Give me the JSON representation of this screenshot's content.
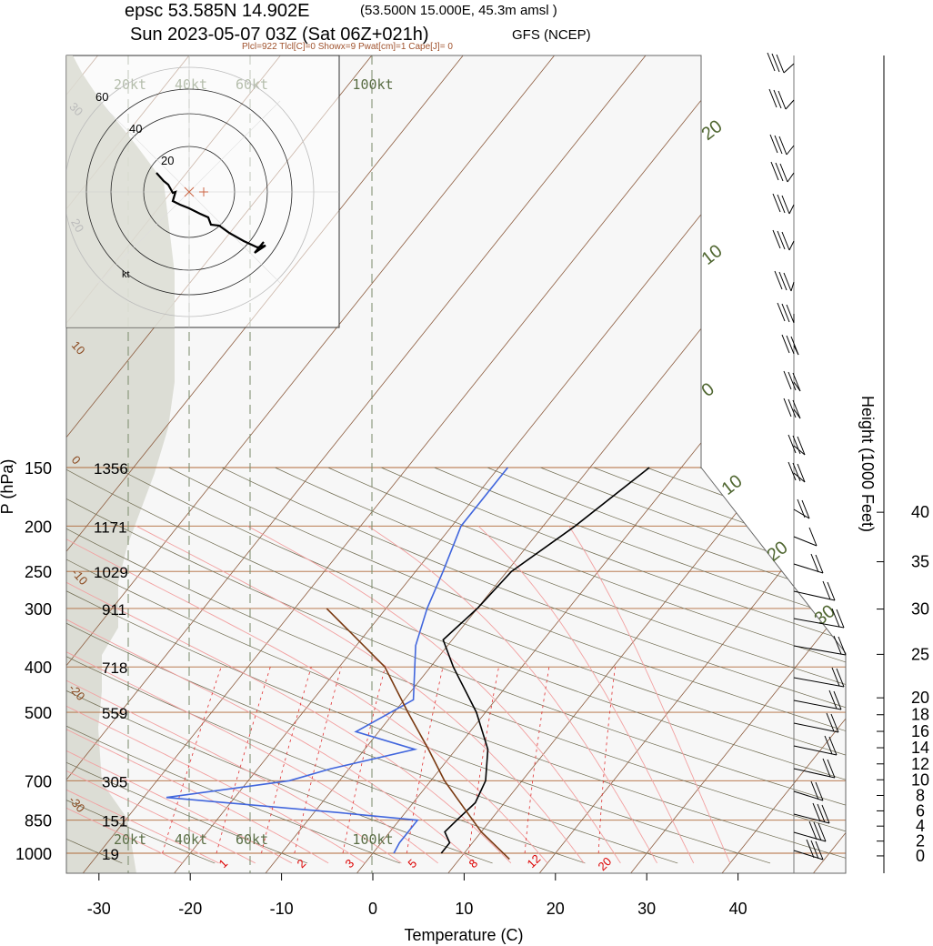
{
  "header": {
    "title": "epsc 53.585N 14.902E",
    "location": "(53.500N 15.000E,  45.3m amsl )",
    "time": "Sun 2023-05-07 03Z (Sat 06Z+021h)",
    "model": "GFS (NCEP)",
    "indices": "Plcl=922 Tlcl[C]=0 Showx=9 Pwat[cm]=1 Cape[J]= 0"
  },
  "chart_data": {
    "type": "line",
    "subtype": "skew-T log-p sounding",
    "xlabel": "Temperature (C)",
    "ylabel": "P (hPa)",
    "y2label": "Height (1000 Feet)",
    "xlim": [
      -34,
      46
    ],
    "ylim": [
      1030,
      150
    ],
    "x_ticks": [
      "-30",
      "-20",
      "-10",
      "0",
      "10",
      "20",
      "30",
      "40"
    ],
    "pressure_levels": [
      {
        "p": 150,
        "label": "150",
        "height_m": "1356"
      },
      {
        "p": 200,
        "label": "200",
        "height_m": "1171"
      },
      {
        "p": 250,
        "label": "250",
        "height_m": "1029"
      },
      {
        "p": 300,
        "label": "300",
        "height_m": "911"
      },
      {
        "p": 400,
        "label": "400",
        "height_m": "718"
      },
      {
        "p": 500,
        "label": "500",
        "height_m": "559"
      },
      {
        "p": 700,
        "label": "700",
        "height_m": "305"
      },
      {
        "p": 850,
        "label": "850",
        "height_m": "151"
      },
      {
        "p": 1000,
        "label": "1000",
        "height_m": "19"
      }
    ],
    "height_ft_ticks": [
      "0",
      "2",
      "4",
      "6",
      "8",
      "10",
      "12",
      "14",
      "16",
      "18",
      "20",
      "25",
      "30",
      "35",
      "40"
    ],
    "isotherm_labels": [
      "10",
      "0",
      "-10",
      "-20",
      "-30"
    ],
    "dry_adiabat_labels": [
      "20",
      "10",
      "0",
      "10",
      "20",
      "30"
    ],
    "mixing_ratio_labels": [
      "1",
      "2",
      "3",
      "5",
      "8",
      "12",
      "20"
    ],
    "series": [
      {
        "name": "temperature",
        "color": "#000000",
        "points": [
          [
            1000,
            7.5
          ],
          [
            950,
            7.5
          ],
          [
            900,
            6.0
          ],
          [
            850,
            6.3
          ],
          [
            780,
            6.8
          ],
          [
            700,
            6.0
          ],
          [
            600,
            3.5
          ],
          [
            500,
            -1.0
          ],
          [
            400,
            -7.5
          ],
          [
            350,
            -11.0
          ],
          [
            300,
            -10.0
          ],
          [
            250,
            -9.5
          ],
          [
            200,
            -6.5
          ],
          [
            150,
            -3.5
          ]
        ]
      },
      {
        "name": "dewpoint",
        "color": "#4166dd",
        "points": [
          [
            1000,
            2.3
          ],
          [
            950,
            2.0
          ],
          [
            900,
            2.0
          ],
          [
            850,
            2.0
          ],
          [
            820,
            -7.0
          ],
          [
            760,
            -27.5
          ],
          [
            700,
            -15.5
          ],
          [
            660,
            -12.0
          ],
          [
            600,
            -4.5
          ],
          [
            550,
            -12.5
          ],
          [
            470,
            -9.0
          ],
          [
            360,
            -13.5
          ],
          [
            300,
            -15.5
          ],
          [
            250,
            -17.0
          ],
          [
            200,
            -19.0
          ],
          [
            150,
            -19.0
          ]
        ]
      },
      {
        "name": "parcel",
        "color": "#7a3a12",
        "points": [
          [
            1030,
            15.5
          ],
          [
            900,
            10.0
          ],
          [
            800,
            6.0
          ],
          [
            700,
            1.5
          ],
          [
            600,
            -3.0
          ],
          [
            500,
            -8.5
          ],
          [
            400,
            -15.0
          ],
          [
            300,
            -26.5
          ]
        ]
      }
    ],
    "hodograph": {
      "speed_rings": [
        "20",
        "40",
        "60"
      ],
      "speed_labels": [
        "20kt",
        "40kt",
        "60kt",
        "100kt"
      ],
      "unit": "kt",
      "ring_faint_labels": [
        "30",
        "20"
      ]
    }
  }
}
